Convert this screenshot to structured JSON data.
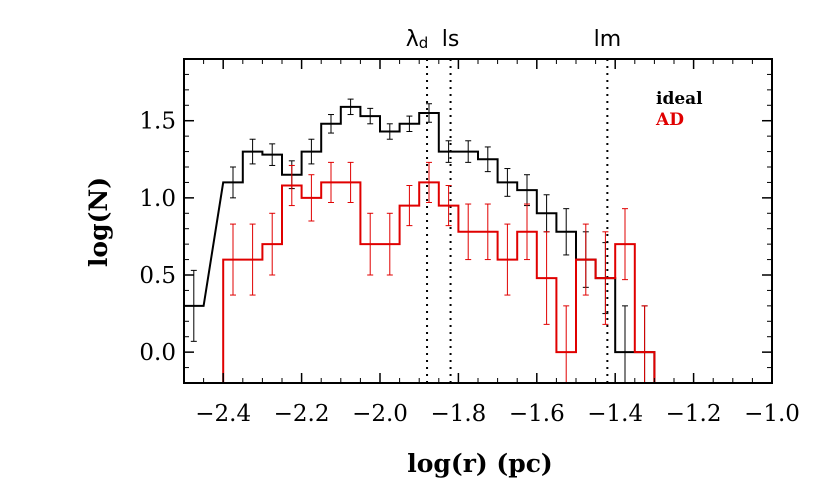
{
  "chart_data": {
    "type": "line",
    "style": "step histogram with error bars",
    "xlabel": "log(r) (pc)",
    "ylabel": "log(N)",
    "xlim": [
      -2.5,
      -1.0
    ],
    "ylim": [
      -0.2,
      1.9
    ],
    "xticks": [
      -2.4,
      -2.2,
      -2.0,
      -1.8,
      -1.6,
      -1.4,
      -1.2,
      -1.0
    ],
    "xtick_labels": [
      "−2.4",
      "−2.2",
      "−2.0",
      "−1.8",
      "−1.6",
      "−1.4",
      "−1.2",
      "−1.0"
    ],
    "yticks": [
      0.0,
      0.5,
      1.0,
      1.5
    ],
    "ytick_labels": [
      "0.0",
      "0.5",
      "1.0",
      "1.5"
    ],
    "bin_width": 0.05,
    "legend": {
      "position": "top-right",
      "entries": [
        "ideal",
        "AD"
      ]
    },
    "vertical_lines": [
      {
        "label": "λ",
        "sub": "d",
        "x": -1.88
      },
      {
        "label": "ls",
        "x": -1.82
      },
      {
        "label": "lm",
        "x": -1.42
      }
    ],
    "series": [
      {
        "name": "ideal",
        "color": "#000000",
        "bin_centers": [
          -2.475,
          -2.375,
          -2.325,
          -2.275,
          -2.225,
          -2.175,
          -2.125,
          -2.075,
          -2.025,
          -1.975,
          -1.925,
          -1.875,
          -1.825,
          -1.775,
          -1.725,
          -1.675,
          -1.625,
          -1.575,
          -1.525,
          -1.475,
          -1.425,
          -1.375,
          -1.325
        ],
        "values": [
          0.3,
          1.1,
          1.3,
          1.28,
          1.15,
          1.3,
          1.48,
          1.59,
          1.53,
          1.43,
          1.48,
          1.55,
          1.3,
          1.3,
          1.25,
          1.1,
          1.05,
          0.9,
          0.78,
          0.6,
          0.48,
          0.0,
          0.0
        ],
        "errors": [
          0.23,
          0.1,
          0.08,
          0.07,
          0.09,
          0.08,
          0.06,
          0.05,
          0.05,
          0.05,
          0.05,
          0.06,
          0.07,
          0.07,
          0.08,
          0.09,
          0.1,
          0.12,
          0.15,
          0.18,
          0.23,
          0.3,
          0.3
        ]
      },
      {
        "name": "AD",
        "color": "#e00000",
        "bin_centers": [
          -2.375,
          -2.325,
          -2.275,
          -2.225,
          -2.175,
          -2.125,
          -2.075,
          -2.025,
          -1.975,
          -1.925,
          -1.875,
          -1.825,
          -1.775,
          -1.725,
          -1.675,
          -1.625,
          -1.575,
          -1.525,
          -1.475,
          -1.425,
          -1.375,
          -1.325
        ],
        "values": [
          0.6,
          0.6,
          0.7,
          1.08,
          1.0,
          1.1,
          1.1,
          0.7,
          0.7,
          0.95,
          1.1,
          0.95,
          0.78,
          0.78,
          0.6,
          0.78,
          0.48,
          0.0,
          0.6,
          0.48,
          0.7,
          0.0
        ],
        "errors": [
          0.23,
          0.23,
          0.2,
          0.13,
          0.15,
          0.13,
          0.13,
          0.2,
          0.2,
          0.13,
          0.13,
          0.13,
          0.18,
          0.18,
          0.23,
          0.18,
          0.3,
          0.3,
          0.23,
          0.3,
          0.23,
          0.3
        ]
      }
    ]
  }
}
